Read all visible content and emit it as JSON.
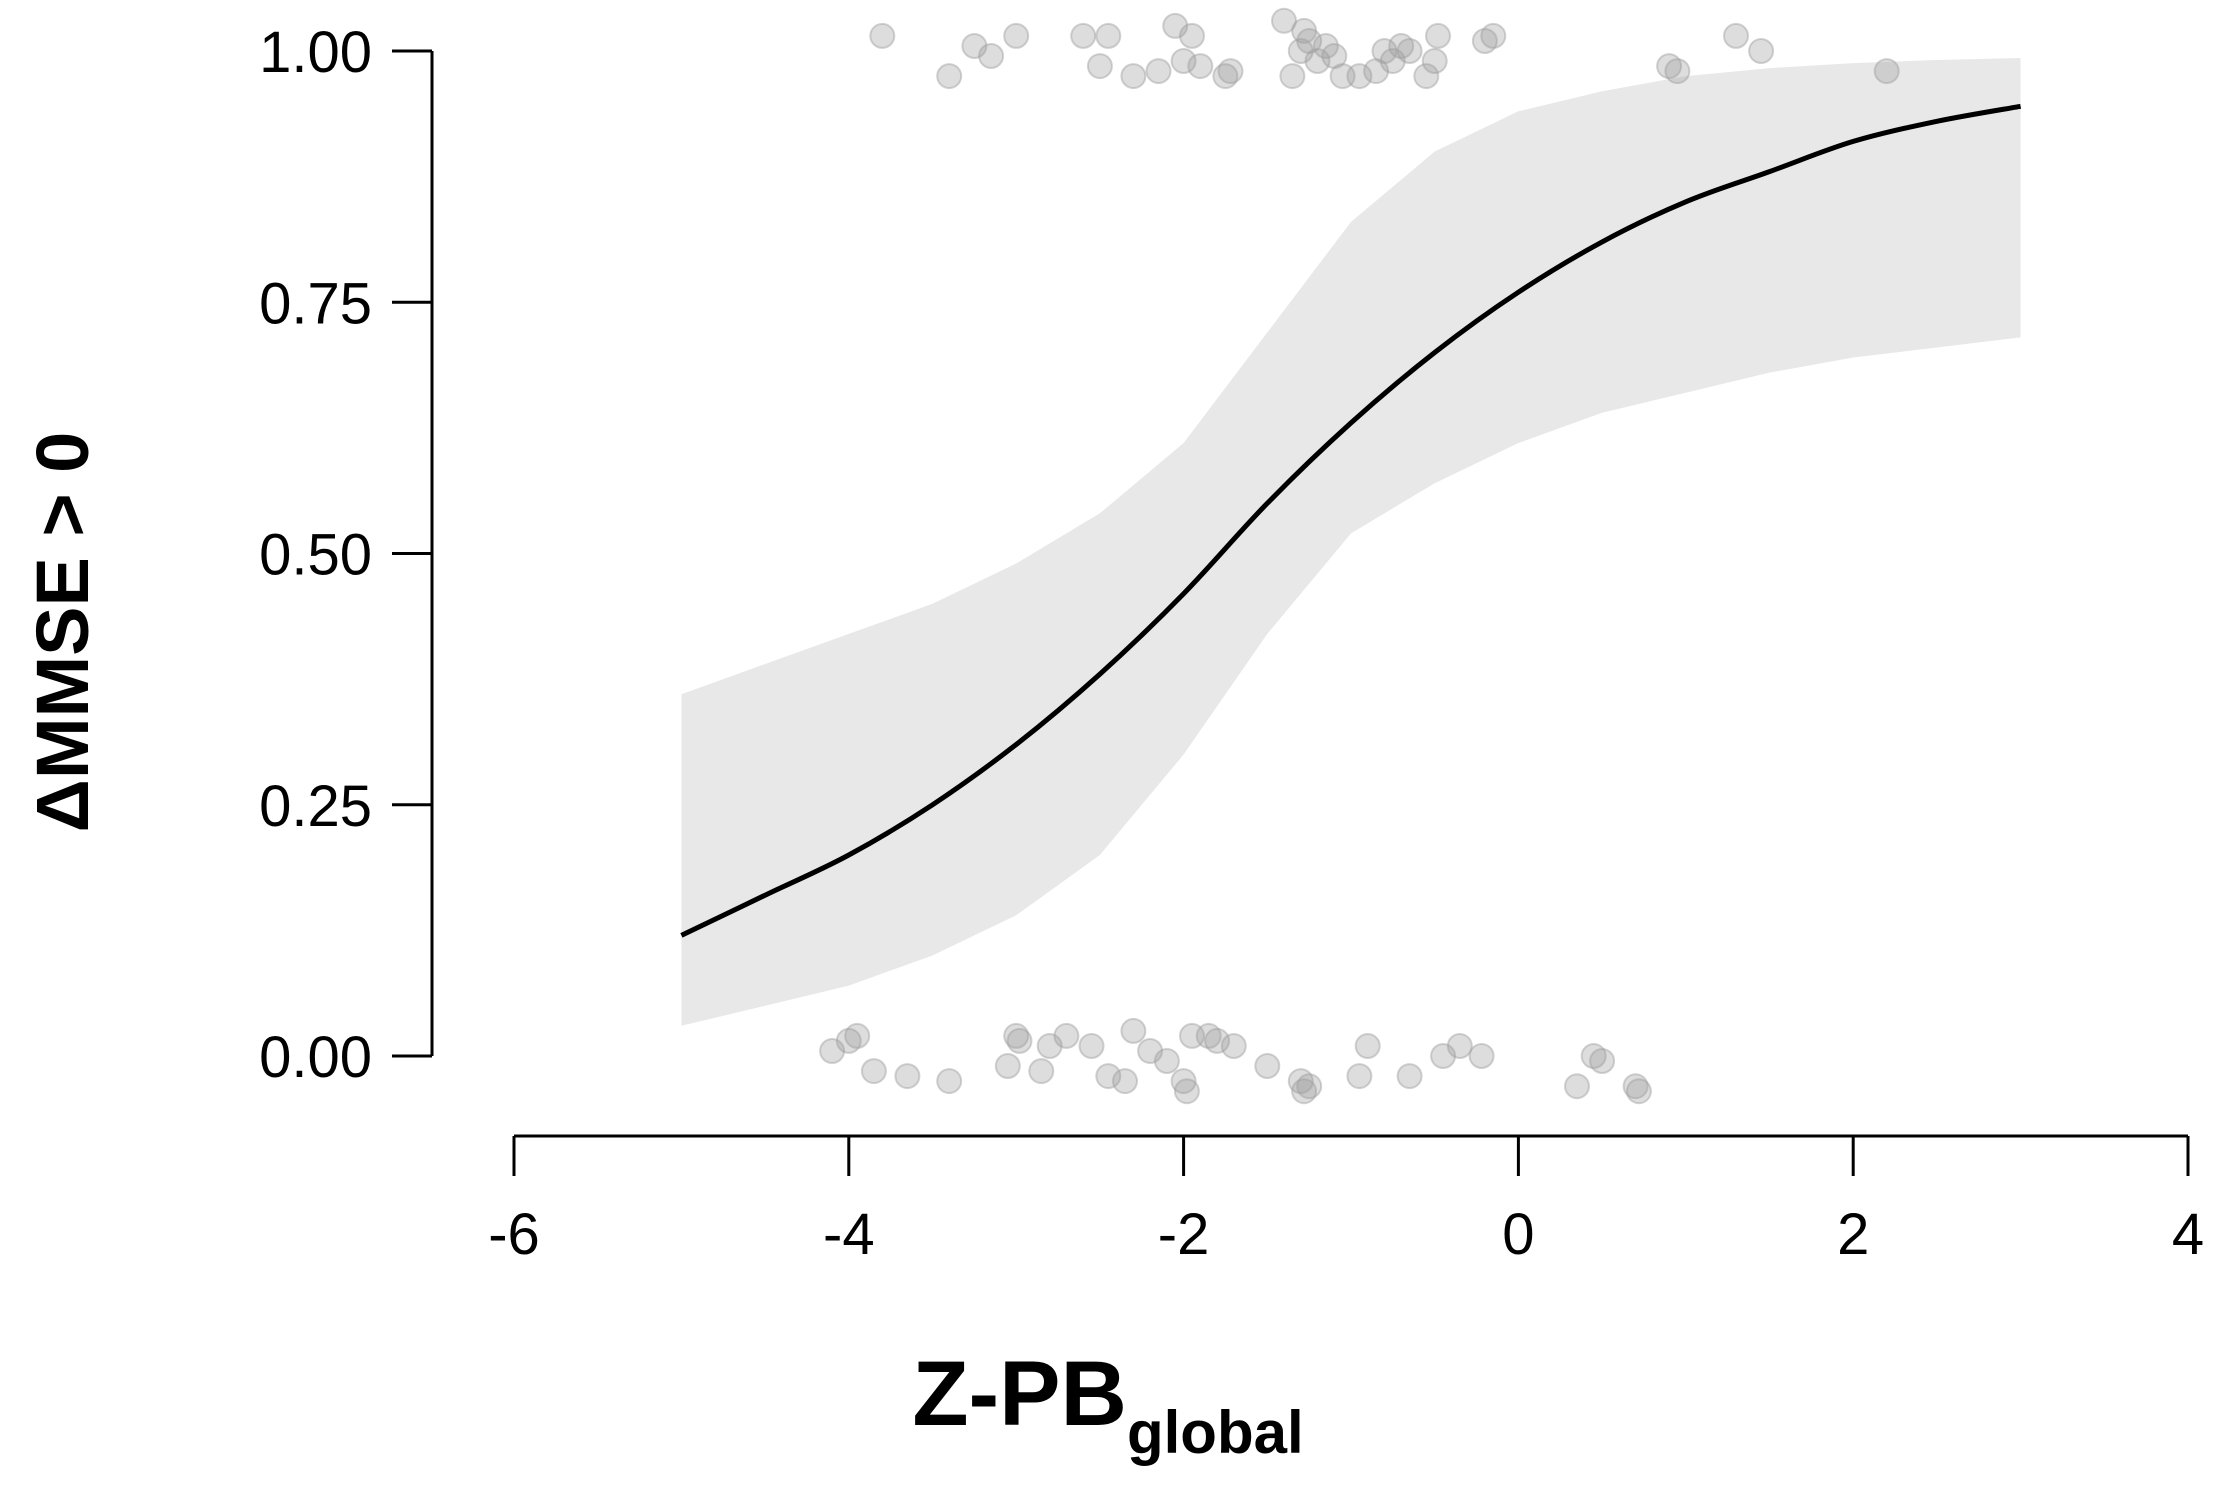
{
  "chart_data": {
    "type": "line",
    "xlabel_main": "Z-PB",
    "xlabel_sub": "global",
    "ylabel": "ΔMMSE > 0",
    "xlim": [
      -6,
      4
    ],
    "ylim": [
      0,
      1
    ],
    "x_ticks": [
      "-6",
      "-4",
      "-2",
      "0",
      "2",
      "4"
    ],
    "y_ticks": [
      "0.00",
      "0.25",
      "0.50",
      "0.75",
      "1.00"
    ],
    "curve": {
      "x": [
        -5.0,
        -4.5,
        -4.0,
        -3.5,
        -3.0,
        -2.5,
        -2.0,
        -1.5,
        -1.0,
        -0.5,
        0.0,
        0.5,
        1.0,
        1.5,
        2.0,
        2.5,
        3.0
      ],
      "y": [
        0.12,
        0.16,
        0.2,
        0.25,
        0.31,
        0.38,
        0.46,
        0.55,
        0.63,
        0.7,
        0.76,
        0.81,
        0.85,
        0.88,
        0.91,
        0.93,
        0.945
      ]
    },
    "ci_band": {
      "x": [
        -5.0,
        -4.5,
        -4.0,
        -3.5,
        -3.0,
        -2.5,
        -2.0,
        -1.5,
        -1.0,
        -0.5,
        0.0,
        0.5,
        1.0,
        1.5,
        2.0,
        2.5,
        3.0
      ],
      "lower": [
        0.03,
        0.05,
        0.07,
        0.1,
        0.14,
        0.2,
        0.3,
        0.42,
        0.52,
        0.57,
        0.61,
        0.64,
        0.66,
        0.68,
        0.695,
        0.705,
        0.715
      ],
      "upper": [
        0.36,
        0.39,
        0.42,
        0.45,
        0.49,
        0.54,
        0.61,
        0.72,
        0.83,
        0.9,
        0.94,
        0.96,
        0.975,
        0.983,
        0.988,
        0.991,
        0.993
      ]
    },
    "points_y1": {
      "x": [
        -3.8,
        -3.4,
        -3.25,
        -3.15,
        -3.0,
        -2.6,
        -2.5,
        -2.45,
        -2.3,
        -2.15,
        -2.05,
        -2.0,
        -1.95,
        -1.9,
        -1.75,
        -1.72,
        -1.4,
        -1.35,
        -1.3,
        -1.28,
        -1.25,
        -1.2,
        -1.15,
        -1.1,
        -1.05,
        -0.95,
        -0.85,
        -0.8,
        -0.75,
        -0.7,
        -0.65,
        -0.55,
        -0.5,
        -0.48,
        -0.2,
        -0.15,
        0.9,
        0.95,
        1.3,
        1.45,
        2.2
      ],
      "y": [
        1.015,
        0.975,
        1.005,
        0.995,
        1.015,
        1.015,
        0.985,
        1.015,
        0.975,
        0.98,
        1.025,
        0.99,
        1.015,
        0.985,
        0.975,
        0.98,
        1.03,
        0.975,
        1.0,
        1.02,
        1.01,
        0.99,
        1.005,
        0.995,
        0.975,
        0.975,
        0.98,
        1.0,
        0.99,
        1.005,
        1.0,
        0.975,
        0.99,
        1.015,
        1.01,
        1.015,
        0.985,
        0.98,
        1.015,
        1.0,
        0.98
      ]
    },
    "points_y0": {
      "x": [
        -4.1,
        -4.0,
        -3.95,
        -3.85,
        -3.65,
        -3.4,
        -3.05,
        -3.0,
        -2.98,
        -2.85,
        -2.8,
        -2.7,
        -2.55,
        -2.45,
        -2.35,
        -2.3,
        -2.2,
        -2.1,
        -2.0,
        -1.98,
        -1.95,
        -1.85,
        -1.8,
        -1.7,
        -1.5,
        -1.3,
        -1.28,
        -1.25,
        -0.95,
        -0.9,
        -0.65,
        -0.45,
        -0.35,
        -0.22,
        0.35,
        0.45,
        0.5,
        0.7,
        0.72
      ],
      "y": [
        0.005,
        0.015,
        0.02,
        -0.015,
        -0.02,
        -0.025,
        -0.01,
        0.02,
        0.015,
        -0.015,
        0.01,
        0.02,
        0.01,
        -0.02,
        -0.025,
        0.025,
        0.005,
        -0.005,
        -0.025,
        -0.035,
        0.02,
        0.02,
        0.015,
        0.01,
        -0.01,
        -0.025,
        -0.035,
        -0.03,
        -0.02,
        0.01,
        -0.02,
        0.0,
        0.01,
        0.0,
        -0.03,
        0.0,
        -0.005,
        -0.03,
        -0.035
      ]
    },
    "colors": {
      "curve": "#000000",
      "band": "#e8e8e8",
      "points": "#9e9e9e",
      "axis": "#000000"
    }
  }
}
